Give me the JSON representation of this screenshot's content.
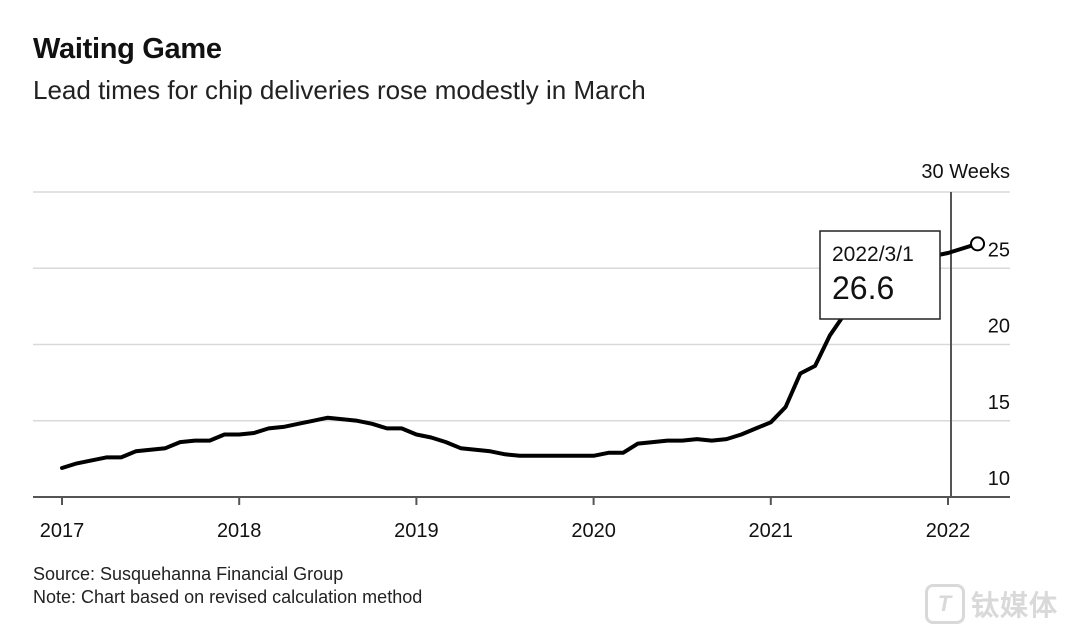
{
  "header": {
    "title": "Waiting Game",
    "subtitle": "Lead times for chip deliveries rose modestly in March"
  },
  "footer": {
    "source": "Source: Susquehanna Financial Group",
    "note": "Note: Chart based on revised calculation method"
  },
  "watermark": {
    "logo_glyph": "T",
    "text": "钛媒体"
  },
  "colors": {
    "line": "#000000",
    "grid": "#d9d9d9",
    "axis": "#555555",
    "text": "#111111"
  },
  "chart_data": {
    "type": "line",
    "title": "Waiting Game",
    "subtitle": "Lead times for chip deliveries rose modestly in March",
    "ylabel": "",
    "y_unit_label": "30 Weeks",
    "ylim": [
      10,
      30
    ],
    "xlim": [
      "2017-01",
      "2022-05"
    ],
    "y_ticks": [
      10,
      15,
      20,
      25,
      30
    ],
    "y_tick_labels": [
      "10",
      "15",
      "20",
      "25",
      "30 Weeks"
    ],
    "x_ticks": [
      "2017-01",
      "2018-01",
      "2019-01",
      "2020-01",
      "2021-01",
      "2022-01"
    ],
    "x_tick_labels": [
      "2017",
      "2018",
      "2019",
      "2020",
      "2021",
      "2022"
    ],
    "grid": true,
    "series": [
      {
        "x": [
          "2017-01",
          "2017-02",
          "2017-03",
          "2017-04",
          "2017-05",
          "2017-06",
          "2017-07",
          "2017-08",
          "2017-09",
          "2017-10",
          "2017-11",
          "2017-12",
          "2018-01",
          "2018-02",
          "2018-03",
          "2018-04",
          "2018-05",
          "2018-06",
          "2018-07",
          "2018-08",
          "2018-09",
          "2018-10",
          "2018-11",
          "2018-12",
          "2019-01",
          "2019-02",
          "2019-03",
          "2019-04",
          "2019-05",
          "2019-06",
          "2019-07",
          "2019-08",
          "2019-09",
          "2019-10",
          "2019-11",
          "2019-12",
          "2020-01",
          "2020-02",
          "2020-03",
          "2020-04",
          "2020-05",
          "2020-06",
          "2020-07",
          "2020-08",
          "2020-09",
          "2020-10",
          "2020-11",
          "2020-12",
          "2021-01",
          "2021-02",
          "2021-03",
          "2021-04",
          "2021-05",
          "2021-06",
          "2021-07",
          "2021-08",
          "2021-09",
          "2021-10",
          "2021-11",
          "2021-12",
          "2022-01",
          "2022-02",
          "2022-03"
        ],
        "values": [
          11.9,
          12.2,
          12.4,
          12.6,
          12.6,
          13.0,
          13.1,
          13.2,
          13.6,
          13.7,
          13.7,
          14.1,
          14.1,
          14.2,
          14.5,
          14.6,
          14.8,
          15.0,
          15.2,
          15.1,
          15.0,
          14.8,
          14.5,
          14.5,
          14.1,
          13.9,
          13.6,
          13.2,
          13.1,
          13.0,
          12.8,
          12.7,
          12.7,
          12.7,
          12.7,
          12.7,
          12.7,
          12.9,
          12.9,
          13.5,
          13.6,
          13.7,
          13.7,
          13.8,
          13.7,
          13.8,
          14.1,
          14.5,
          14.9,
          15.9,
          18.1,
          18.6,
          20.6,
          22.0,
          23.0,
          23.8,
          24.5,
          25.0,
          25.4,
          25.8,
          26.0,
          26.3,
          26.6
        ]
      }
    ],
    "annotation": {
      "date": "2022/3/1",
      "value": "26.6"
    }
  }
}
